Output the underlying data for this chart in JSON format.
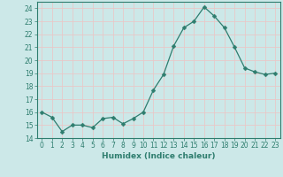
{
  "x": [
    0,
    1,
    2,
    3,
    4,
    5,
    6,
    7,
    8,
    9,
    10,
    11,
    12,
    13,
    14,
    15,
    16,
    17,
    18,
    19,
    20,
    21,
    22,
    23
  ],
  "y": [
    16.0,
    15.6,
    14.5,
    15.0,
    15.0,
    14.8,
    15.5,
    15.6,
    15.1,
    15.5,
    16.0,
    17.7,
    18.9,
    21.1,
    22.5,
    23.0,
    24.1,
    23.4,
    22.5,
    21.0,
    19.4,
    19.1,
    18.9,
    19.0
  ],
  "line_color": "#2e7d6e",
  "marker": "D",
  "marker_size": 2.5,
  "bg_color": "#cce8e8",
  "grid_color": "#e8c8c8",
  "xlabel": "Humidex (Indice chaleur)",
  "xlim": [
    -0.5,
    23.5
  ],
  "ylim": [
    14,
    24.5
  ],
  "yticks": [
    14,
    15,
    16,
    17,
    18,
    19,
    20,
    21,
    22,
    23,
    24
  ],
  "xticks": [
    0,
    1,
    2,
    3,
    4,
    5,
    6,
    7,
    8,
    9,
    10,
    11,
    12,
    13,
    14,
    15,
    16,
    17,
    18,
    19,
    20,
    21,
    22,
    23
  ],
  "tick_fontsize": 5.5,
  "label_fontsize": 6.5
}
